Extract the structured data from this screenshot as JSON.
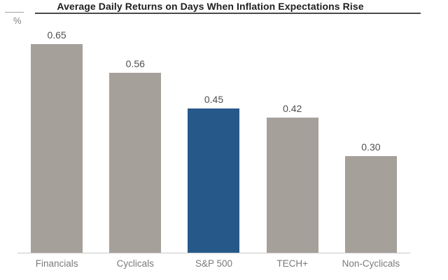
{
  "chart": {
    "title": "Average Daily Returns on Days When Inflation Expectations Rise",
    "unit_label": "%",
    "colors": {
      "bar_default": "#a6a09a",
      "bar_highlight": "#26598a",
      "title_text": "#1f1f1f",
      "value_label_text": "#4f4f4f",
      "category_label_text": "#7a7a7a",
      "axis_line": "#c9c9c9",
      "title_underline": "#4a4a4a"
    }
  },
  "chart_data": {
    "type": "bar",
    "title": "Average Daily Returns on Days When Inflation Expectations Rise",
    "xlabel": "",
    "ylabel": "%",
    "categories": [
      "Financials",
      "Cyclicals",
      "S&P 500",
      "TECH+",
      "Non-Cyclicals"
    ],
    "values": [
      0.65,
      0.56,
      0.45,
      0.42,
      0.3
    ],
    "value_labels": [
      "0.65",
      "0.56",
      "0.45",
      "0.42",
      "0.30"
    ],
    "bar_colors": [
      "#a6a09a",
      "#a6a09a",
      "#26598a",
      "#a6a09a",
      "#a6a09a"
    ],
    "highlight_category": "S&P 500",
    "highlight_index": 2,
    "ylim": [
      0,
      0.7
    ],
    "grid": false,
    "legend": false,
    "y_axis_ticks_visible": false,
    "data_labels_position": "above-bar"
  }
}
